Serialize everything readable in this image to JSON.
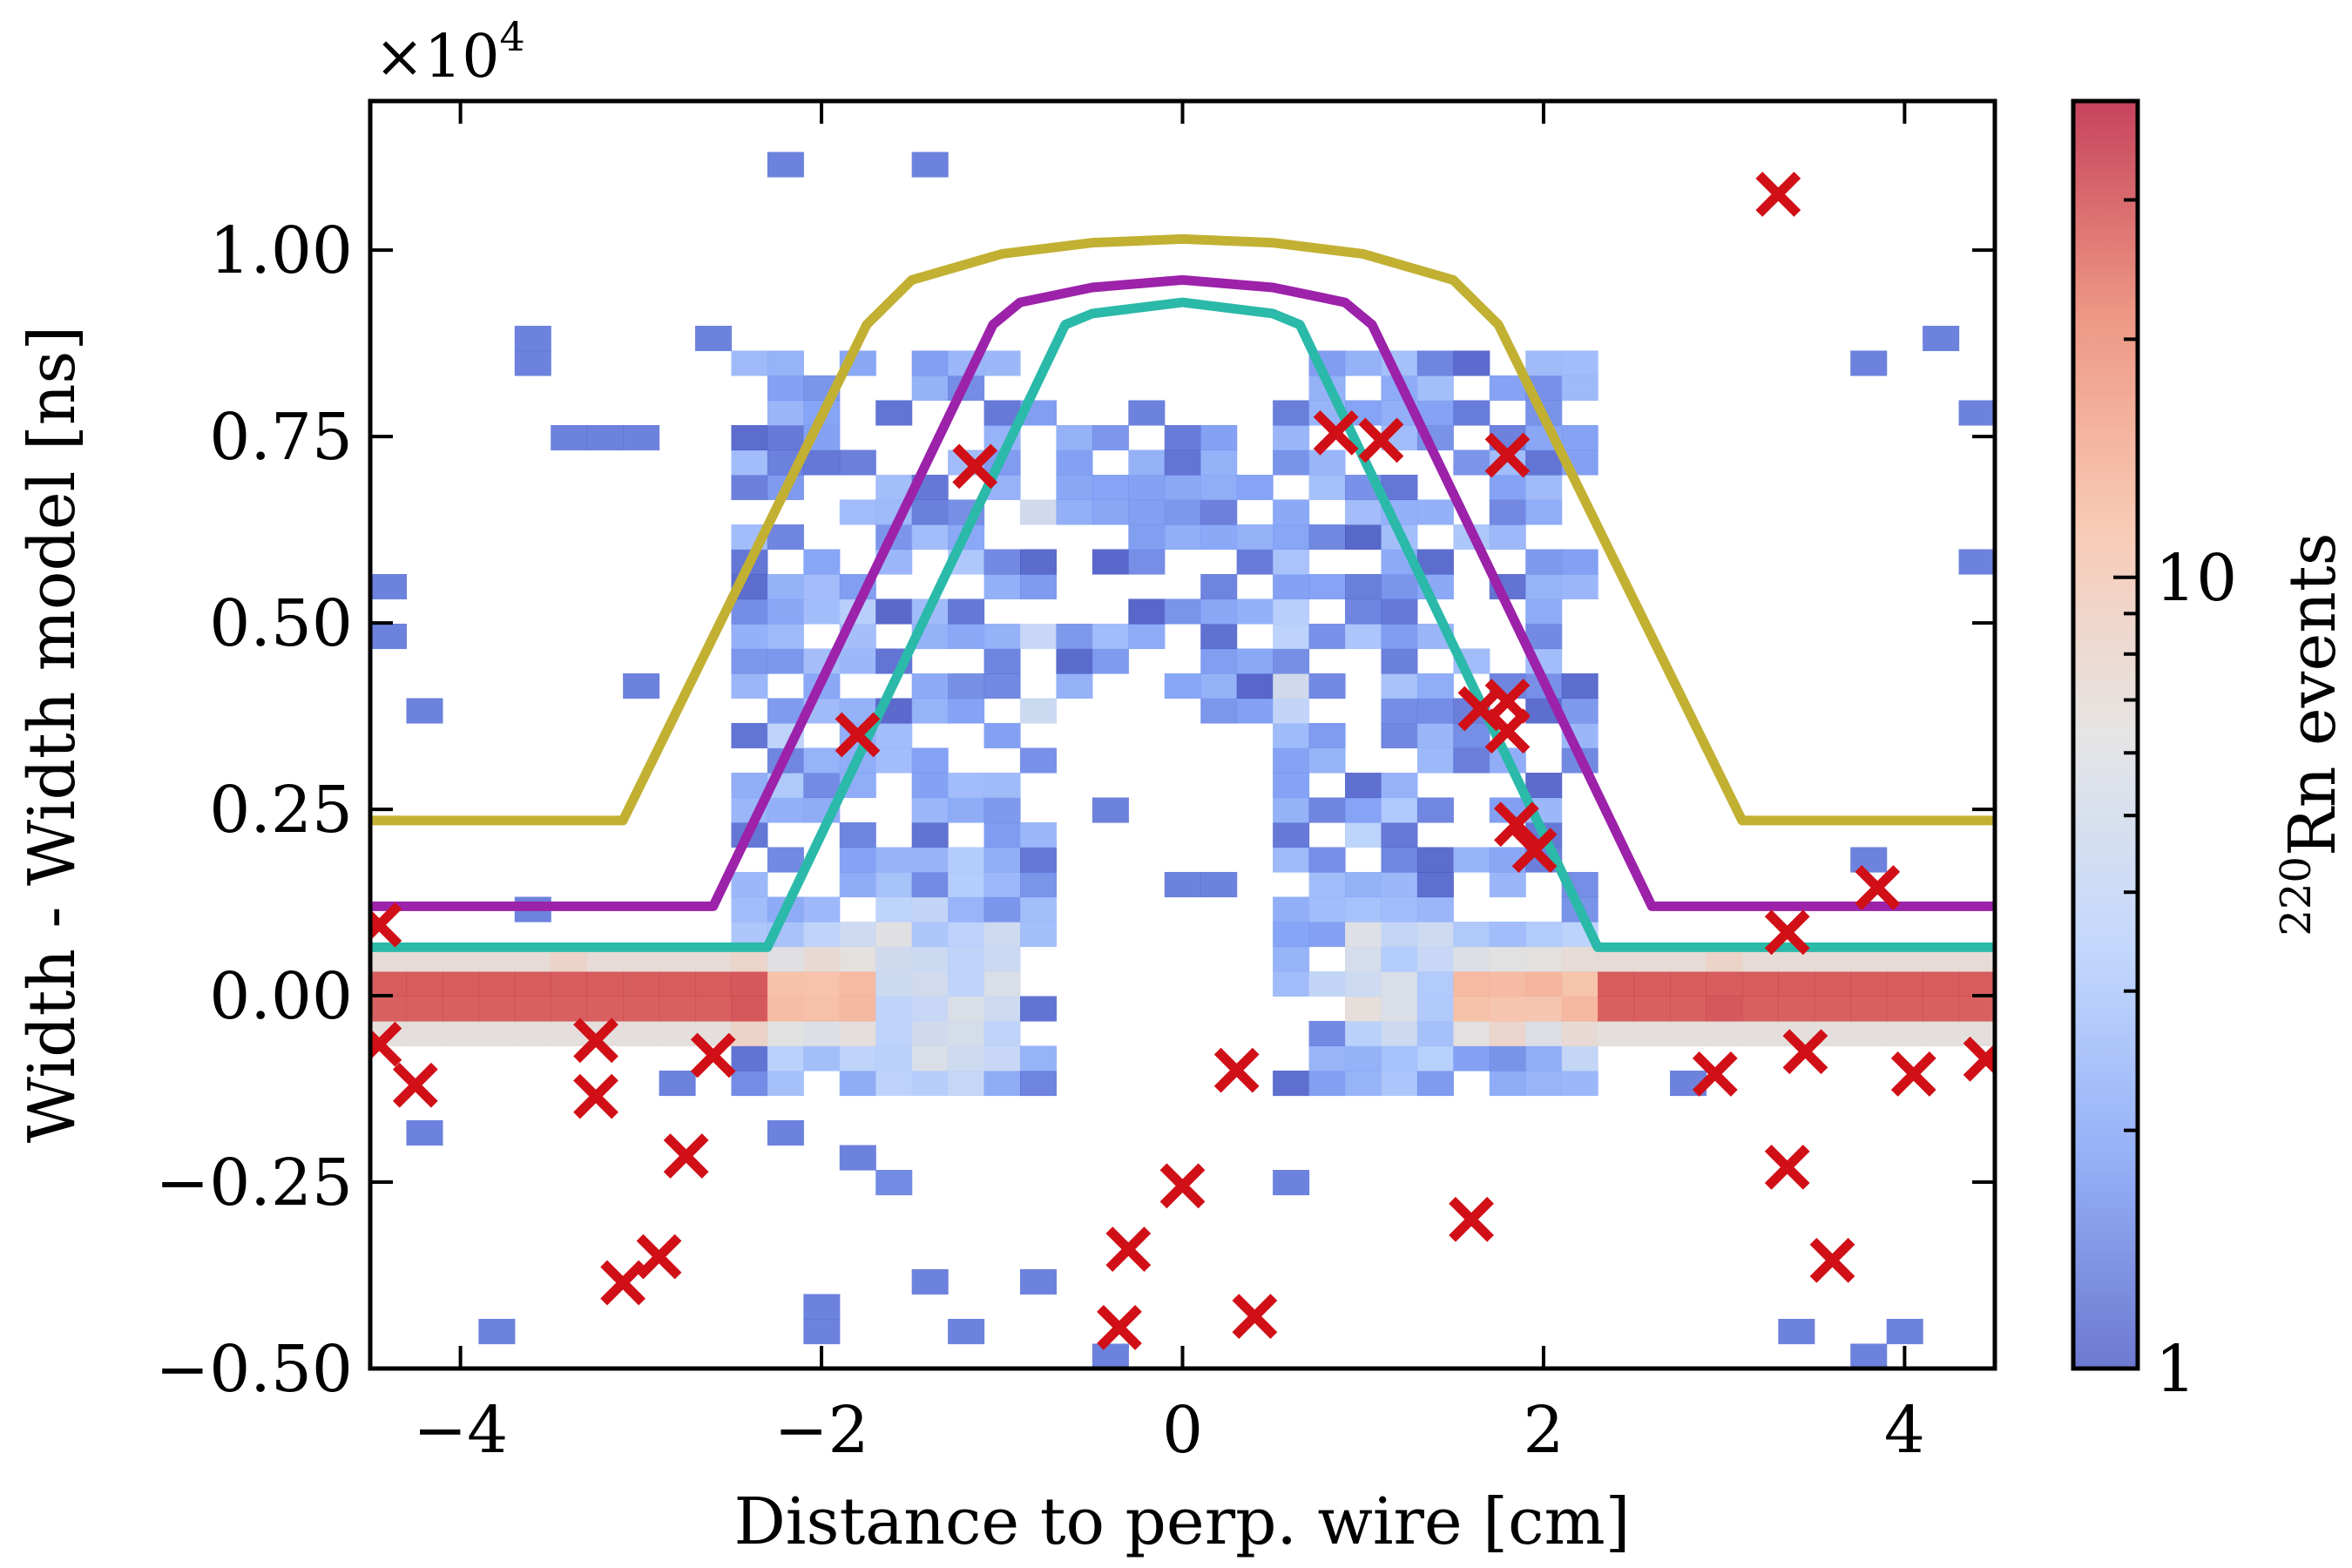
{
  "chart_data": {
    "type": "heatmap",
    "xlabel": "Distance to perp. wire [cm]",
    "ylabel": "Width - Width model [ns]",
    "y_scale_label": "×10",
    "y_scale_exponent": "4",
    "y_scale_factor": 10000,
    "xlim": [
      -4.5,
      4.5
    ],
    "ylim": [
      -0.5,
      1.2
    ],
    "x_ticks": [
      -4,
      -2,
      0,
      2,
      4
    ],
    "x_tick_labels": [
      "−4",
      "−2",
      "0",
      "2",
      "4"
    ],
    "y_ticks": [
      -0.5,
      -0.25,
      0.0,
      0.25,
      0.5,
      0.75,
      1.0
    ],
    "y_tick_labels": [
      "−0.50",
      "−0.25",
      "0.00",
      "0.25",
      "0.50",
      "0.75",
      "1.00"
    ],
    "heatmap": {
      "colormap": "coolwarm",
      "scale": "log",
      "vmin": 1,
      "vmax": 40,
      "bin_width_x": 0.2,
      "bin_width_y": 0.0333,
      "band_center_y": 0.0,
      "central_gap_x": [
        -0.6,
        0.6
      ]
    },
    "colorbar": {
      "label_sup": "220",
      "label_main": "Rn events",
      "scale": "log",
      "ticks": [
        1,
        10
      ],
      "tick_labels": [
        "1",
        "10"
      ],
      "colors": [
        "#3b4cc0",
        "#7396f5",
        "#b0cbfc",
        "#dddcdc",
        "#f6b89c",
        "#e7745b",
        "#b40426"
      ]
    },
    "series": [
      {
        "color": "#c2b033",
        "points": [
          [
            -4.5,
            0.235
          ],
          [
            -3.1,
            0.235
          ],
          [
            -1.75,
            0.9
          ],
          [
            -1.5,
            0.96
          ],
          [
            -1.0,
            0.995
          ],
          [
            -0.5,
            1.01
          ],
          [
            0.0,
            1.015
          ],
          [
            0.5,
            1.01
          ],
          [
            1.0,
            0.995
          ],
          [
            1.5,
            0.96
          ],
          [
            1.75,
            0.9
          ],
          [
            3.1,
            0.235
          ],
          [
            4.5,
            0.235
          ]
        ]
      },
      {
        "color": "#9c22aa",
        "points": [
          [
            -4.5,
            0.12
          ],
          [
            -2.6,
            0.12
          ],
          [
            -1.05,
            0.9
          ],
          [
            -0.9,
            0.93
          ],
          [
            -0.5,
            0.95
          ],
          [
            0.0,
            0.96
          ],
          [
            0.5,
            0.95
          ],
          [
            0.9,
            0.93
          ],
          [
            1.05,
            0.9
          ],
          [
            2.6,
            0.12
          ],
          [
            4.5,
            0.12
          ]
        ]
      },
      {
        "color": "#2bb9a9",
        "points": [
          [
            -4.5,
            0.065
          ],
          [
            -2.3,
            0.065
          ],
          [
            -0.65,
            0.9
          ],
          [
            -0.5,
            0.915
          ],
          [
            0.0,
            0.93
          ],
          [
            0.5,
            0.915
          ],
          [
            0.65,
            0.9
          ],
          [
            2.3,
            0.065
          ],
          [
            4.5,
            0.065
          ]
        ]
      }
    ],
    "markers": {
      "symbol": "x",
      "color": "#d00f17",
      "points": [
        [
          -4.45,
          0.095
        ],
        [
          -4.45,
          -0.065
        ],
        [
          -4.25,
          -0.12
        ],
        [
          -3.25,
          -0.06
        ],
        [
          -3.25,
          -0.135
        ],
        [
          -2.6,
          -0.08
        ],
        [
          -2.75,
          -0.215
        ],
        [
          -2.9,
          -0.35
        ],
        [
          -3.1,
          -0.385
        ],
        [
          -1.8,
          0.35
        ],
        [
          -1.15,
          0.71
        ],
        [
          0.3,
          -0.1
        ],
        [
          0.0,
          -0.255
        ],
        [
          -0.3,
          -0.34
        ],
        [
          -0.35,
          -0.445
        ],
        [
          0.4,
          -0.43
        ],
        [
          0.85,
          0.755
        ],
        [
          1.1,
          0.745
        ],
        [
          1.8,
          0.725
        ],
        [
          1.65,
          0.385
        ],
        [
          1.8,
          0.395
        ],
        [
          1.8,
          0.355
        ],
        [
          1.85,
          0.23
        ],
        [
          1.95,
          0.195
        ],
        [
          1.6,
          -0.3
        ],
        [
          3.3,
          1.075
        ],
        [
          3.35,
          0.085
        ],
        [
          3.85,
          0.145
        ],
        [
          2.95,
          -0.105
        ],
        [
          3.45,
          -0.075
        ],
        [
          3.35,
          -0.23
        ],
        [
          3.6,
          -0.355
        ],
        [
          4.05,
          -0.105
        ],
        [
          4.45,
          -0.085
        ]
      ]
    },
    "frame": {
      "box": true,
      "grid": false,
      "tick_direction": "in",
      "colorbar_position": "right"
    }
  }
}
